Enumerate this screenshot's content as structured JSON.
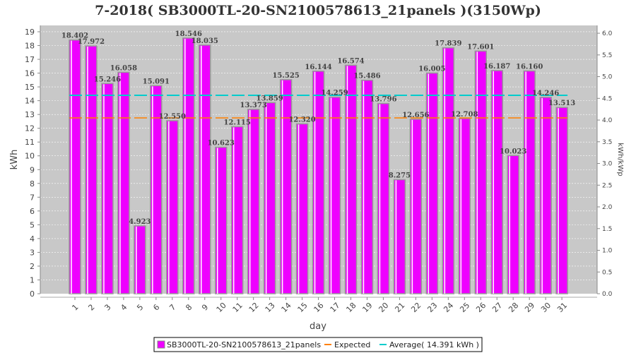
{
  "chart_data": {
    "type": "bar",
    "title": "7-2018( SB3000TL-20-SN2100578613_21panels )(3150Wp)",
    "xlabel": "day",
    "ylabel": "kWh",
    "y2label": "kWh/kWp",
    "ylim": [
      0,
      19.46
    ],
    "y2lim": [
      0,
      6.18
    ],
    "yticks": [
      0,
      1,
      2,
      3,
      4,
      5,
      6,
      7,
      8,
      9,
      10,
      11,
      12,
      13,
      14,
      15,
      16,
      17,
      18,
      19
    ],
    "y2ticks": [
      "0.0",
      "0.5",
      "1.0",
      "1.5",
      "2.0",
      "2.5",
      "3.0",
      "3.5",
      "4.0",
      "4.5",
      "5.0",
      "5.5",
      "6.0"
    ],
    "categories": [
      "1",
      "2",
      "3",
      "4",
      "5",
      "6",
      "7",
      "8",
      "9",
      "10",
      "11",
      "12",
      "13",
      "14",
      "15",
      "16",
      "17",
      "18",
      "19",
      "20",
      "21",
      "22",
      "23",
      "24",
      "25",
      "26",
      "27",
      "28",
      "29",
      "30",
      "31"
    ],
    "series": [
      {
        "name": "SB3000TL-20-SN2100578613_21panels",
        "color": "#ee00ff",
        "values": [
          18.402,
          17.972,
          15.246,
          16.058,
          4.923,
          15.091,
          12.55,
          18.546,
          18.035,
          10.623,
          12.115,
          13.373,
          13.859,
          15.525,
          12.32,
          16.144,
          14.259,
          16.574,
          15.486,
          13.796,
          8.275,
          12.656,
          16.005,
          17.839,
          12.708,
          17.601,
          16.187,
          10.023,
          16.16,
          14.246,
          13.513
        ],
        "labels": [
          "18.402",
          "17.972",
          "15.246",
          "16.058",
          "4.923",
          "15.091",
          "12.550",
          "18.546",
          "18.035",
          "10.623",
          "12.115",
          "13.373",
          "13.859",
          "15.525",
          "12.320",
          "16.144",
          "14.259",
          "16.574",
          "15.486",
          "13.796",
          "8.275",
          "12.656",
          "16.005",
          "17.839",
          "12.708",
          "17.601",
          "16.187",
          "10.023",
          "16.160",
          "14.246",
          "13.513"
        ]
      }
    ],
    "expected": {
      "name": "Expected",
      "value": 12.75,
      "color": "#ff8000"
    },
    "average": {
      "name": "Average( 14.391 kWh )",
      "value": 14.391,
      "color": "#00cccc"
    },
    "grid": true,
    "legend_position": "bottom"
  }
}
